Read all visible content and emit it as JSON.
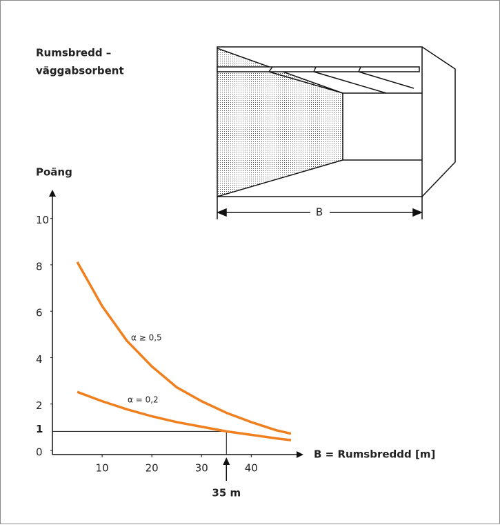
{
  "chart_data": {
    "type": "line",
    "title_lines": [
      "Rumsbredd –",
      "väggabsorbent"
    ],
    "ylabel": "Poäng",
    "xlabel": "B = Rumsbreddd [m]",
    "x": [
      5,
      10,
      15,
      20,
      25,
      30,
      35,
      40,
      45,
      48
    ],
    "series": [
      {
        "name": "α ≥ 0,5",
        "color": "#f07f1e",
        "values": [
          8.3,
          6.4,
          4.9,
          3.8,
          2.9,
          2.3,
          1.8,
          1.4,
          1.05,
          0.9
        ]
      },
      {
        "name": "α = 0,2",
        "color": "#f07f1e",
        "values": [
          2.7,
          2.3,
          1.95,
          1.65,
          1.4,
          1.2,
          1.0,
          0.85,
          0.7,
          0.62
        ]
      }
    ],
    "xlim": [
      0,
      50.5
    ],
    "ylim": [
      0,
      11
    ],
    "xticks": [
      10,
      20,
      30,
      40
    ],
    "yticks": [
      0,
      2,
      4,
      6,
      8,
      10
    ],
    "marker": {
      "x": 35,
      "y": 1,
      "label": "35 m"
    },
    "diagram": {
      "label": "B"
    }
  }
}
